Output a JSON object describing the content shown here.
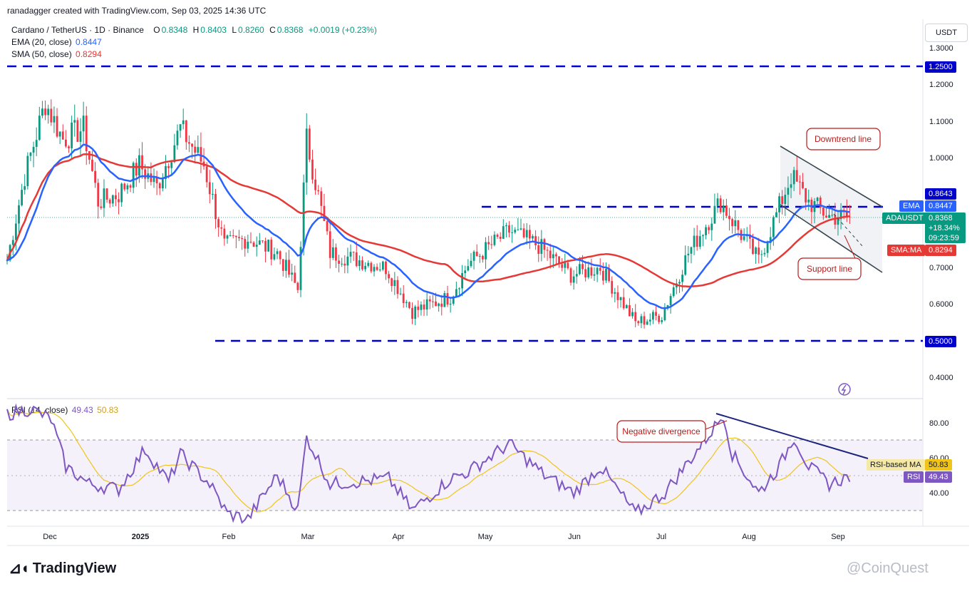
{
  "header": {
    "credit": "ranadagger created with TradingView.com, Sep 03, 2025 14:36 UTC"
  },
  "legend": {
    "symbol": "Cardano / TetherUS · 1D · Binance",
    "o_label": "O",
    "o_val": "0.8348",
    "h_label": "H",
    "h_val": "0.8403",
    "l_label": "L",
    "l_val": "0.8260",
    "c_label": "C",
    "c_val": "0.8368",
    "change": "+0.0019 (+0.23%)",
    "ema_label": "EMA (20, close)",
    "ema_val": "0.8447",
    "sma_label": "SMA (50, close)",
    "sma_val": "0.8294",
    "rsi_label": "RSI (14, close)",
    "rsi_val": "49.43",
    "rsi_ma_val": "50.83"
  },
  "currency_button": "USDT",
  "price_axis": {
    "ticks": [
      "1.3000",
      "1.2000",
      "1.1000",
      "1.0000",
      "0.7000",
      "0.6000",
      "0.4000"
    ],
    "badges": {
      "r125": "1.2500",
      "r0864": "0.8643",
      "ema": "0.8447",
      "ema_tag": "EMA",
      "price": "0.8368",
      "pct": "+18.34%",
      "countdown": "09:23:59",
      "symbol_tag": "ADAUSDT",
      "sma": "0.8294",
      "sma_tag": "SMA:MA",
      "s050": "0.5000"
    }
  },
  "rsi_axis": {
    "ticks": [
      "80.00",
      "60.00",
      "40.00"
    ],
    "badges": {
      "ma_tag": "RSI-based MA",
      "ma_val": "50.83",
      "rsi_tag": "RSI",
      "rsi_val": "49.43"
    }
  },
  "time_axis": [
    "Dec",
    "2025",
    "Feb",
    "Mar",
    "Apr",
    "May",
    "Jun",
    "Jul",
    "Aug",
    "Sep"
  ],
  "annotations": {
    "downtrend": "Downtrend line",
    "support": "Support line",
    "divergence": "Negative divergence"
  },
  "footer": {
    "logo": "TradingView",
    "watermark": "@CoinQuest"
  },
  "colors": {
    "up": "#089981",
    "down": "#f23645",
    "ema": "#2962ff",
    "sma": "#e53935",
    "rsi": "#7e57c2",
    "rsi_ma": "#f0c419",
    "level": "#0000cc"
  },
  "chart_data": [
    {
      "type": "candlestick",
      "title": "Cardano / TetherUS · 1D · Binance",
      "x_range": [
        "2024-11-20",
        "2025-09-03"
      ],
      "ylim": [
        0.38,
        1.32
      ],
      "horizontal_levels": [
        1.25,
        0.8643,
        0.5
      ],
      "close_anchors": [
        [
          "2024-11-20",
          0.72
        ],
        [
          "2024-11-26",
          0.95
        ],
        [
          "2024-12-03",
          1.15
        ],
        [
          "2024-12-09",
          1.05
        ],
        [
          "2024-12-16",
          1.08
        ],
        [
          "2024-12-21",
          0.88
        ],
        [
          "2024-12-28",
          0.9
        ],
        [
          "2025-01-04",
          0.98
        ],
        [
          "2025-01-10",
          0.92
        ],
        [
          "2025-01-18",
          1.08
        ],
        [
          "2025-01-26",
          0.98
        ],
        [
          "2025-02-02",
          0.76
        ],
        [
          "2025-02-10",
          0.78
        ],
        [
          "2025-02-20",
          0.74
        ],
        [
          "2025-02-27",
          0.64
        ],
        [
          "2025-03-02",
          1.05
        ],
        [
          "2025-03-10",
          0.74
        ],
        [
          "2025-03-20",
          0.72
        ],
        [
          "2025-03-29",
          0.7
        ],
        [
          "2025-04-07",
          0.58
        ],
        [
          "2025-04-20",
          0.62
        ],
        [
          "2025-04-26",
          0.71
        ],
        [
          "2025-05-10",
          0.8
        ],
        [
          "2025-05-20",
          0.76
        ],
        [
          "2025-05-31",
          0.68
        ],
        [
          "2025-06-10",
          0.7
        ],
        [
          "2025-06-22",
          0.55
        ],
        [
          "2025-07-01",
          0.57
        ],
        [
          "2025-07-10",
          0.74
        ],
        [
          "2025-07-21",
          0.88
        ],
        [
          "2025-07-28",
          0.79
        ],
        [
          "2025-08-03",
          0.72
        ],
        [
          "2025-08-14",
          0.95
        ],
        [
          "2025-08-20",
          0.88
        ],
        [
          "2025-08-27",
          0.84
        ],
        [
          "2025-09-03",
          0.8368
        ]
      ],
      "ema_20_last": 0.8447,
      "sma_50_last": 0.8294,
      "downtrend_line": [
        [
          "2025-08-14",
          1.02
        ],
        [
          "2025-09-08",
          0.86
        ]
      ],
      "support_line": [
        [
          "2025-08-14",
          0.87
        ],
        [
          "2025-09-08",
          0.68
        ]
      ],
      "annotations": [
        "Downtrend line",
        "Support line"
      ]
    },
    {
      "type": "line",
      "title": "RSI (14, close)",
      "ylim": [
        20,
        95
      ],
      "bands": [
        70,
        30
      ],
      "rsi_anchors": [
        [
          "2024-11-20",
          85
        ],
        [
          "2024-11-28",
          88
        ],
        [
          "2024-12-05",
          82
        ],
        [
          "2024-12-10",
          55
        ],
        [
          "2024-12-18",
          45
        ],
        [
          "2024-12-28",
          42
        ],
        [
          "2025-01-06",
          65
        ],
        [
          "2025-01-14",
          46
        ],
        [
          "2025-01-18",
          62
        ],
        [
          "2025-01-28",
          45
        ],
        [
          "2025-02-03",
          28
        ],
        [
          "2025-02-10",
          25
        ],
        [
          "2025-02-20",
          50
        ],
        [
          "2025-02-27",
          30
        ],
        [
          "2025-03-02",
          72
        ],
        [
          "2025-03-10",
          45
        ],
        [
          "2025-03-30",
          48
        ],
        [
          "2025-04-07",
          30
        ],
        [
          "2025-04-20",
          48
        ],
        [
          "2025-04-26",
          52
        ],
        [
          "2025-05-10",
          68
        ],
        [
          "2025-05-22",
          50
        ],
        [
          "2025-06-01",
          40
        ],
        [
          "2025-06-10",
          55
        ],
        [
          "2025-06-22",
          28
        ],
        [
          "2025-07-02",
          40
        ],
        [
          "2025-07-12",
          62
        ],
        [
          "2025-07-20",
          80
        ],
        [
          "2025-07-22",
          85
        ],
        [
          "2025-07-25",
          62
        ],
        [
          "2025-08-03",
          40
        ],
        [
          "2025-08-10",
          55
        ],
        [
          "2025-08-15",
          72
        ],
        [
          "2025-08-20",
          55
        ],
        [
          "2025-08-27",
          45
        ],
        [
          "2025-09-03",
          49.43
        ]
      ],
      "rsi_ma_last": 50.83,
      "divergence_line": [
        [
          "2025-07-22",
          86
        ],
        [
          "2025-09-06",
          60
        ]
      ],
      "annotations": [
        "Negative divergence"
      ]
    }
  ]
}
